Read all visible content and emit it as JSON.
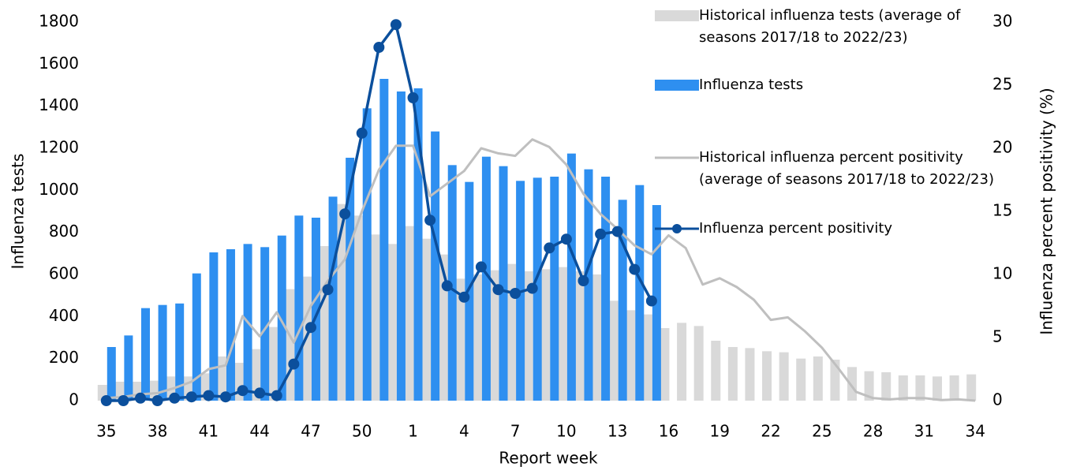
{
  "chart_data": {
    "type": "bar",
    "x_label": "Report week",
    "y_label": "Influenza tests",
    "y2_label": "Influenza percent positivity (%)",
    "categories": [
      "35",
      null,
      null,
      "38",
      null,
      null,
      "41",
      null,
      null,
      "44",
      null,
      null,
      "47",
      null,
      null,
      "50",
      null,
      null,
      "1",
      null,
      null,
      "4",
      null,
      null,
      "7",
      null,
      null,
      "10",
      null,
      null,
      "13",
      null,
      null,
      "16",
      null,
      null,
      "19",
      null,
      null,
      "22",
      null,
      null,
      "25",
      null,
      null,
      "28",
      null,
      null,
      "31",
      null,
      null,
      "34"
    ],
    "ylim": [
      0,
      1800
    ],
    "yticks": [
      0,
      200,
      400,
      600,
      800,
      1000,
      1200,
      1400,
      1600,
      1800
    ],
    "y2lim": [
      0,
      30
    ],
    "y2ticks": [
      0,
      5,
      10,
      15,
      20,
      25,
      30
    ],
    "legend": "upper right",
    "series": [
      {
        "name": "Historical influenza tests (average of seasons 2017/18 to 2022/23)",
        "type": "bar",
        "color": "#d9d9d9",
        "values": [
          75,
          90,
          90,
          95,
          115,
          115,
          130,
          210,
          180,
          245,
          350,
          530,
          590,
          735,
          935,
          880,
          790,
          745,
          830,
          770,
          695,
          580,
          600,
          620,
          650,
          615,
          625,
          635,
          615,
          600,
          475,
          430,
          410,
          345,
          370,
          355,
          285,
          255,
          250,
          235,
          230,
          200,
          210,
          195,
          160,
          140,
          135,
          120,
          120,
          115,
          120,
          125
        ]
      },
      {
        "name": "Influenza tests",
        "type": "bar",
        "color": "#2e8ff0",
        "values": [
          255,
          310,
          440,
          455,
          462,
          605,
          705,
          720,
          745,
          730,
          785,
          880,
          870,
          970,
          1155,
          1390,
          1530,
          1470,
          1485,
          1280,
          1120,
          1040,
          1160,
          1115,
          1045,
          1060,
          1065,
          1175,
          1100,
          1065,
          955,
          1025,
          930,
          null,
          null,
          null,
          null,
          null,
          null,
          null,
          null,
          null,
          null,
          null,
          null,
          null,
          null,
          null,
          null,
          null,
          null,
          null
        ]
      },
      {
        "name": "Historical influenza percent positivity (average of seasons 2017/18 to 2022/23)",
        "type": "line",
        "axis": "y2",
        "color": "#bfbfbf",
        "values": [
          0.2,
          0.3,
          0.5,
          0.6,
          1.0,
          1.5,
          2.5,
          2.8,
          6.7,
          5.1,
          7.0,
          4.6,
          7.5,
          9.5,
          11.2,
          15.0,
          18.3,
          20.2,
          20.2,
          16.2,
          17.2,
          18.2,
          20.0,
          19.6,
          19.4,
          20.7,
          20.1,
          18.7,
          16.4,
          14.8,
          13.6,
          12.3,
          11.6,
          13.1,
          12.1,
          9.2,
          9.7,
          9.0,
          8.0,
          6.4,
          6.6,
          5.5,
          4.2,
          2.5,
          0.7,
          0.2,
          0.1,
          0.2,
          0.2,
          0.05,
          0.1,
          0
        ]
      },
      {
        "name": "Influenza percent positivity",
        "type": "line",
        "axis": "y2",
        "color": "#0b4f9c",
        "markers": true,
        "values": [
          0,
          0,
          0.2,
          0,
          0.2,
          0.3,
          0.4,
          0.3,
          0.8,
          0.6,
          0.4,
          2.9,
          5.8,
          8.8,
          14.8,
          21.2,
          28.0,
          29.8,
          24.0,
          14.3,
          9.1,
          8.2,
          10.6,
          8.8,
          8.5,
          8.9,
          12.1,
          12.8,
          9.5,
          13.2,
          13.4,
          10.4,
          7.9,
          null,
          null,
          null,
          null,
          null,
          null,
          null,
          null,
          null,
          null,
          null,
          null,
          null,
          null,
          null,
          null,
          null,
          null,
          null
        ]
      }
    ]
  }
}
